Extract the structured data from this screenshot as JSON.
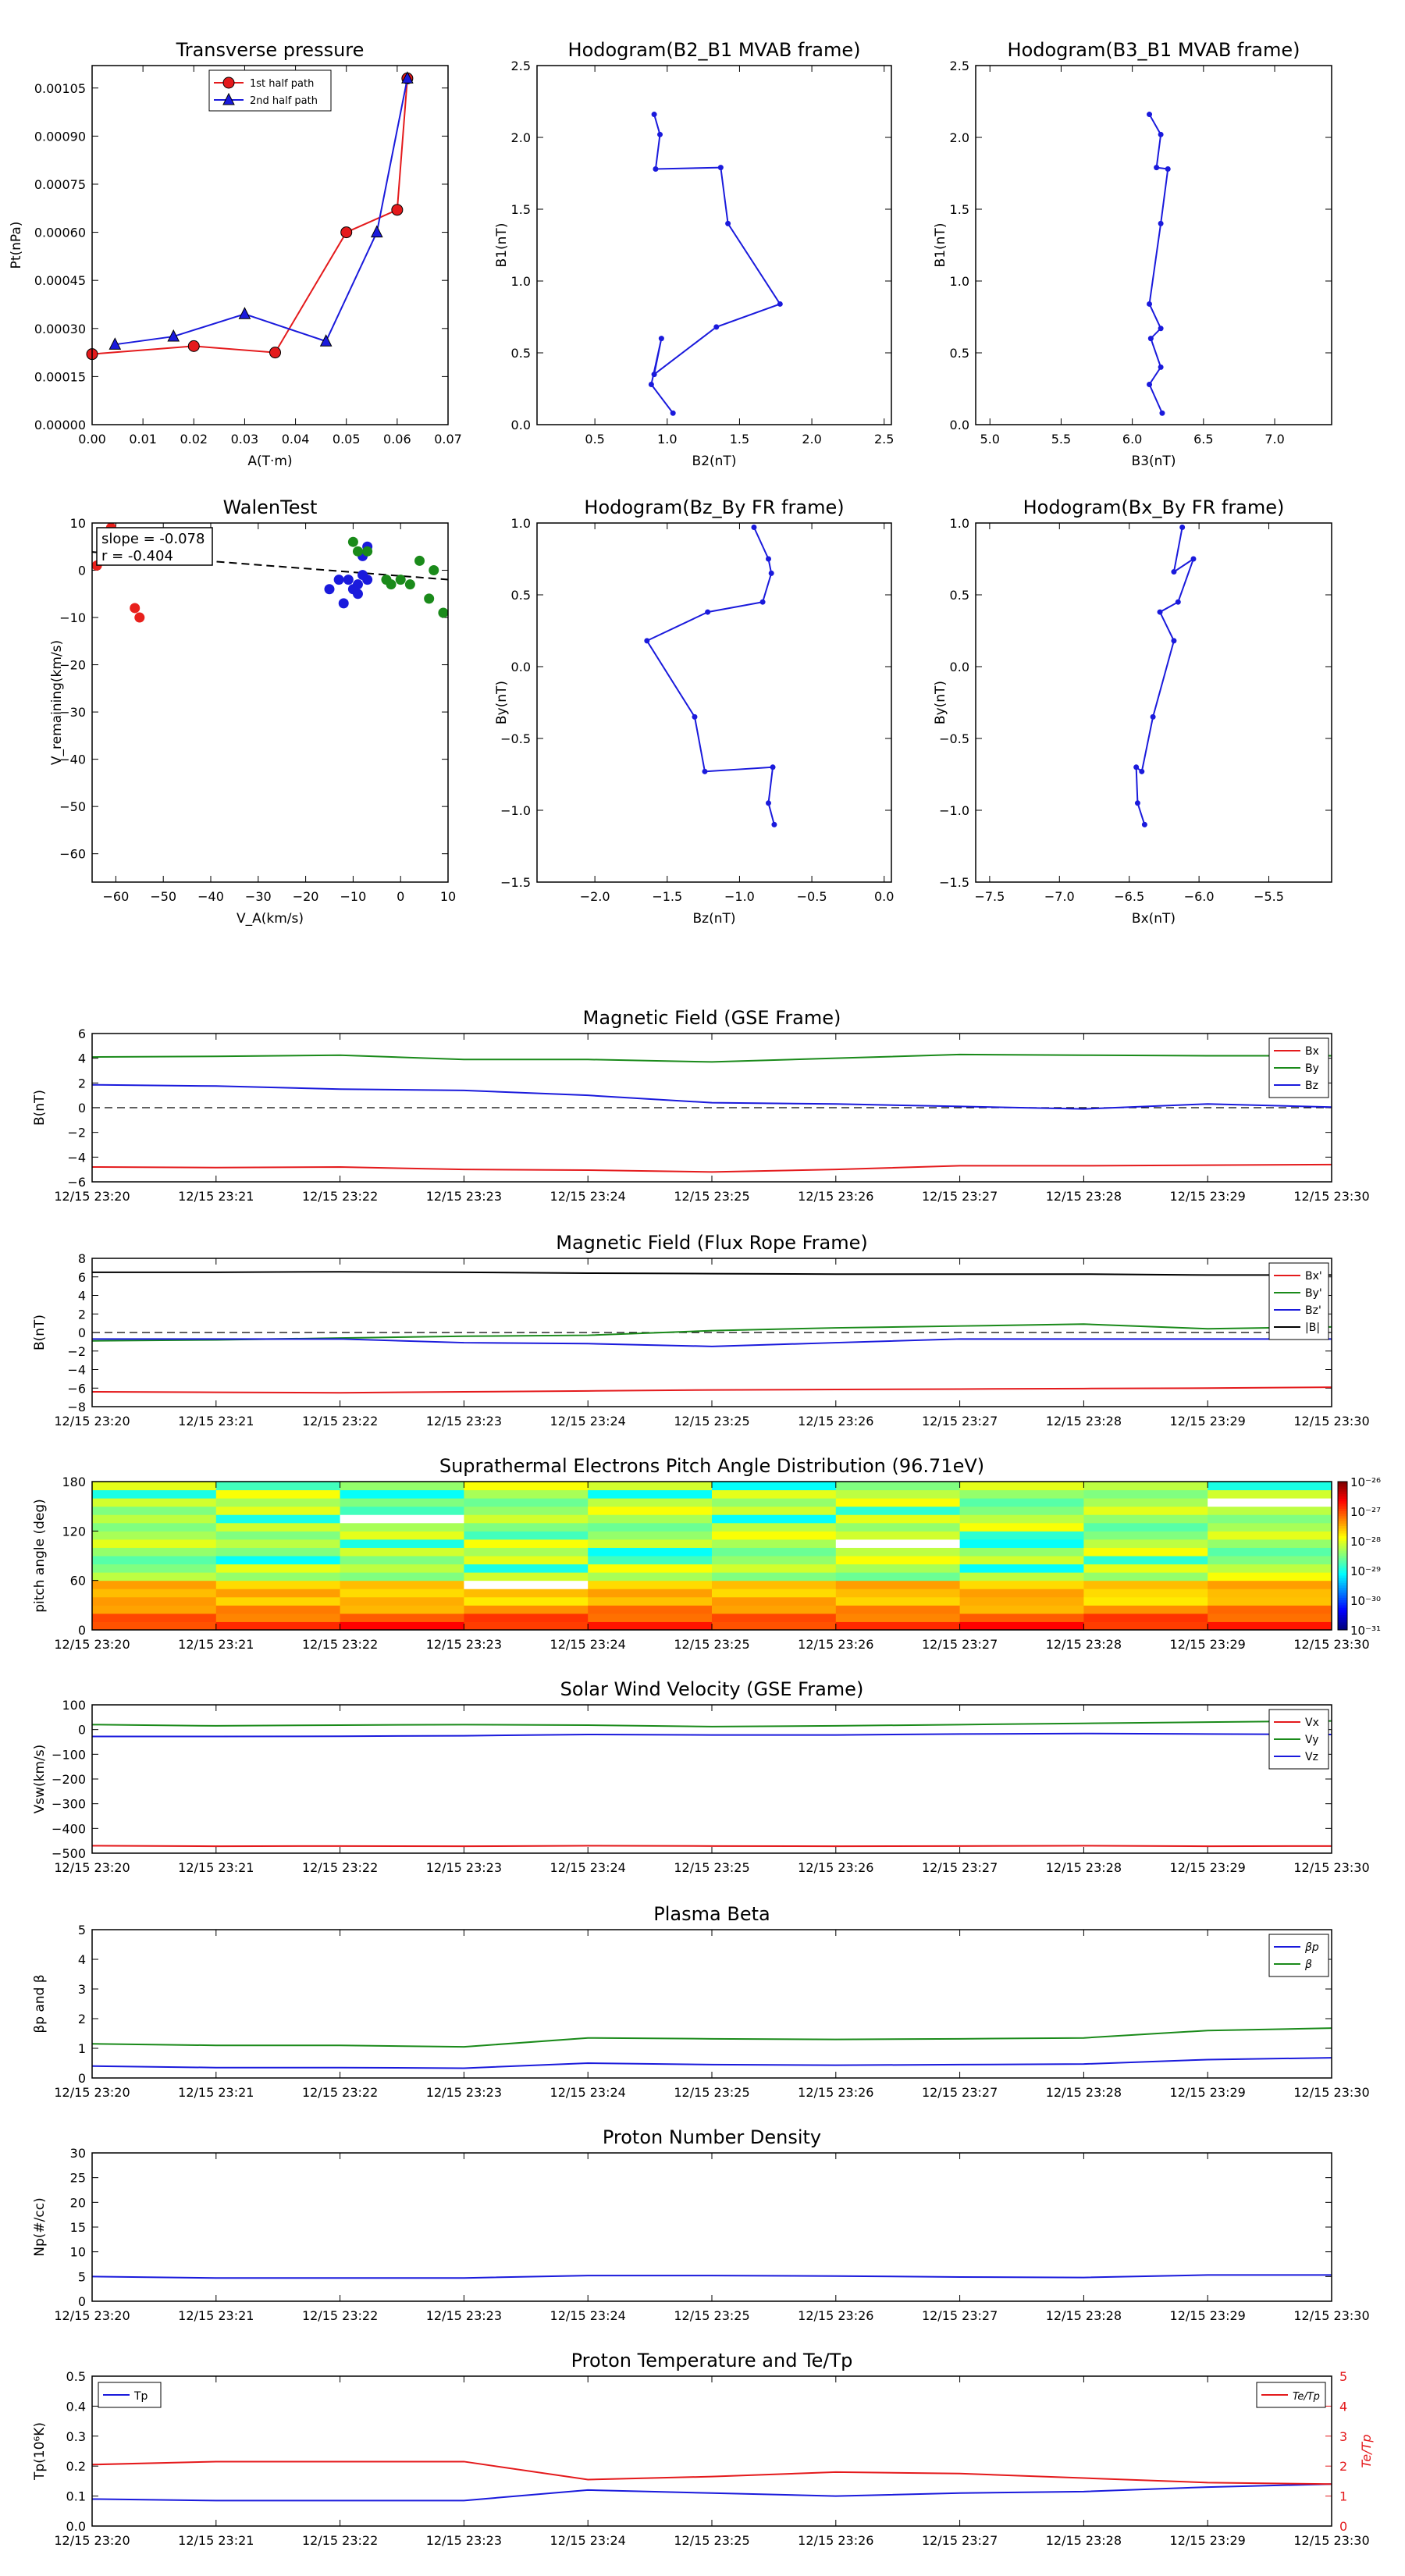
{
  "figure": {
    "time_ticks": [
      "12/15 23:20",
      "12/15 23:21",
      "12/15 23:22",
      "12/15 23:23",
      "12/15 23:24",
      "12/15 23:25",
      "12/15 23:26",
      "12/15 23:27",
      "12/15 23:28",
      "12/15 23:29",
      "12/15 23:30"
    ]
  },
  "chart_data": [
    {
      "id": "transverse",
      "type": "line",
      "title": "Transverse pressure",
      "xlabel": "A(T·m)",
      "ylabel": "Pt(nPa)",
      "xlim": [
        0,
        0.07
      ],
      "ylim": [
        0,
        0.00112
      ],
      "xticks": [
        0.0,
        0.01,
        0.02,
        0.03,
        0.04,
        0.05,
        0.06,
        0.07
      ],
      "xtick_labels": [
        "0.00",
        "0.01",
        "0.02",
        "0.03",
        "0.04",
        "0.05",
        "0.06",
        "0.07"
      ],
      "yticks": [
        0,
        0.00015,
        0.0003,
        0.00045,
        0.0006,
        0.00075,
        0.0009,
        0.00105
      ],
      "ytick_labels": [
        "0.00000",
        "0.00015",
        "0.00030",
        "0.00045",
        "0.00060",
        "0.00075",
        "0.00090",
        "0.00105"
      ],
      "legend": "top-center",
      "series": [
        {
          "name": "1st half path",
          "color": "#e41a1c",
          "marker": "circle",
          "x": [
            0.0,
            0.02,
            0.036,
            0.05,
            0.06,
            0.062
          ],
          "y": [
            0.00022,
            0.000245,
            0.000225,
            0.0006,
            0.00067,
            0.00108
          ]
        },
        {
          "name": "2nd half path",
          "color": "#1a1adc",
          "marker": "triangle",
          "x": [
            0.0045,
            0.016,
            0.03,
            0.046,
            0.056,
            0.062
          ],
          "y": [
            0.00025,
            0.000275,
            0.000345,
            0.00026,
            0.0006,
            0.00108
          ]
        }
      ]
    },
    {
      "id": "hodo_b2b1",
      "type": "line",
      "title": "Hodogram(B2_B1 MVAB frame)",
      "xlabel": "B2(nT)",
      "ylabel": "B1(nT)",
      "xlim": [
        0.1,
        2.55
      ],
      "ylim": [
        0.0,
        2.5
      ],
      "xticks": [
        0.5,
        1.0,
        1.5,
        2.0,
        2.5
      ],
      "xtick_labels": [
        "0.5",
        "1.0",
        "1.5",
        "2.0",
        "2.5"
      ],
      "yticks": [
        0.0,
        0.5,
        1.0,
        1.5,
        2.0,
        2.5
      ],
      "ytick_labels": [
        "0.0",
        "0.5",
        "1.0",
        "1.5",
        "2.0",
        "2.5"
      ],
      "series": [
        {
          "color": "#1a1adc",
          "x": [
            0.91,
            0.95,
            0.92,
            1.37,
            1.42,
            1.78,
            1.34,
            0.91,
            0.96,
            0.89,
            1.04
          ],
          "y": [
            2.16,
            2.02,
            1.78,
            1.79,
            1.4,
            0.84,
            0.68,
            0.35,
            0.6,
            0.28,
            0.08
          ]
        }
      ]
    },
    {
      "id": "hodo_b3b1",
      "type": "line",
      "title": "Hodogram(B3_B1 MVAB frame)",
      "xlabel": "B3(nT)",
      "ylabel": "B1(nT)",
      "xlim": [
        4.9,
        7.4
      ],
      "ylim": [
        0.0,
        2.5
      ],
      "xticks": [
        5.0,
        5.5,
        6.0,
        6.5,
        7.0
      ],
      "xtick_labels": [
        "5.0",
        "5.5",
        "6.0",
        "6.5",
        "7.0"
      ],
      "yticks": [
        0.0,
        0.5,
        1.0,
        1.5,
        2.0,
        2.5
      ],
      "ytick_labels": [
        "0.0",
        "0.5",
        "1.0",
        "1.5",
        "2.0",
        "2.5"
      ],
      "series": [
        {
          "color": "#1a1adc",
          "x": [
            6.12,
            6.2,
            6.17,
            6.25,
            6.2,
            6.12,
            6.2,
            6.13,
            6.2,
            6.12,
            6.21
          ],
          "y": [
            2.16,
            2.02,
            1.79,
            1.78,
            1.4,
            0.84,
            0.67,
            0.6,
            0.4,
            0.28,
            0.08
          ]
        }
      ]
    },
    {
      "id": "walen",
      "type": "scatter",
      "title": "WalenTest",
      "xlabel": "V_A(km/s)",
      "ylabel": "V_remaining(km/s)",
      "xlim": [
        -65,
        10
      ],
      "ylim": [
        -66,
        10
      ],
      "xticks": [
        -60,
        -50,
        -40,
        -30,
        -20,
        -10,
        0,
        10
      ],
      "xtick_labels": [
        "−60",
        "−50",
        "−40",
        "−30",
        "−20",
        "−10",
        "0",
        "10"
      ],
      "yticks": [
        10,
        0,
        -10,
        -20,
        -30,
        -40,
        -50,
        -60
      ],
      "ytick_labels": [
        "10",
        "0",
        "−10",
        "−20",
        "−30",
        "−40",
        "−50",
        "−60"
      ],
      "annotation": [
        "slope = -0.078",
        "r = -0.404"
      ],
      "fit": {
        "slope": -0.078,
        "intercept": -1.2
      },
      "series": [
        {
          "color": "#e8201c",
          "x": [
            -61,
            -56,
            -55,
            -63,
            -64
          ],
          "y": [
            9,
            -8,
            -10,
            3,
            1
          ]
        },
        {
          "color": "#1a1adc",
          "x": [
            -7,
            -8,
            -9,
            -10,
            -11,
            -13,
            -15,
            -12,
            -8,
            -9,
            -7
          ],
          "y": [
            5,
            3,
            -3,
            -4,
            -2,
            -2,
            -4,
            -7,
            -1,
            -5,
            -2
          ]
        },
        {
          "color": "#1a8a1a",
          "x": [
            -10,
            -9,
            -3,
            -2,
            0,
            2,
            4,
            6,
            7,
            9,
            -7
          ],
          "y": [
            6,
            4,
            -2,
            -3,
            -2,
            -3,
            2,
            -6,
            0,
            -9,
            4
          ]
        }
      ]
    },
    {
      "id": "hodo_bzby",
      "type": "line",
      "title": "Hodogram(Bz_By FR frame)",
      "xlabel": "Bz(nT)",
      "ylabel": "By(nT)",
      "xlim": [
        -2.4,
        0.05
      ],
      "ylim": [
        -1.5,
        1.0
      ],
      "xticks": [
        -2.0,
        -1.5,
        -1.0,
        -0.5,
        0.0
      ],
      "xtick_labels": [
        "−2.0",
        "−1.5",
        "−1.0",
        "−0.5",
        "0.0"
      ],
      "yticks": [
        -1.5,
        -1.0,
        -0.5,
        0.0,
        0.5,
        1.0
      ],
      "ytick_labels": [
        "−1.5",
        "−1.0",
        "−0.5",
        "0.0",
        "0.5",
        "1.0"
      ],
      "series": [
        {
          "color": "#1a1adc",
          "x": [
            -0.9,
            -0.8,
            -0.78,
            -0.84,
            -1.22,
            -1.64,
            -1.31,
            -1.24,
            -0.77,
            -0.8,
            -0.76
          ],
          "y": [
            0.97,
            0.75,
            0.65,
            0.45,
            0.38,
            0.18,
            -0.35,
            -0.73,
            -0.7,
            -0.95,
            -1.1
          ]
        }
      ]
    },
    {
      "id": "hodo_bxby",
      "type": "line",
      "title": "Hodogram(Bx_By FR frame)",
      "xlabel": "Bx(nT)",
      "ylabel": "By(nT)",
      "xlim": [
        -7.6,
        -5.05
      ],
      "ylim": [
        -1.5,
        1.0
      ],
      "xticks": [
        -7.5,
        -7.0,
        -6.5,
        -6.0,
        -5.5
      ],
      "xtick_labels": [
        "−7.5",
        "−7.0",
        "−6.5",
        "−6.0",
        "−5.5"
      ],
      "yticks": [
        -1.5,
        -1.0,
        -0.5,
        0.0,
        0.5,
        1.0
      ],
      "ytick_labels": [
        "−1.5",
        "−1.0",
        "−0.5",
        "0.0",
        "0.5",
        "1.0"
      ],
      "series": [
        {
          "color": "#1a1adc",
          "x": [
            -6.12,
            -6.18,
            -6.04,
            -6.15,
            -6.28,
            -6.18,
            -6.33,
            -6.41,
            -6.45,
            -6.44,
            -6.39
          ],
          "y": [
            0.97,
            0.66,
            0.75,
            0.45,
            0.38,
            0.18,
            -0.35,
            -0.73,
            -0.7,
            -0.95,
            -1.1
          ]
        }
      ]
    },
    {
      "id": "mag_gse",
      "type": "line",
      "title": "Magnetic Field (GSE Frame)",
      "ylabel": "B(nT)",
      "ylim": [
        -6,
        6
      ],
      "yticks": [
        6,
        4,
        2,
        0,
        -2,
        -4,
        -6
      ],
      "ytick_labels": [
        "6",
        "4",
        "2",
        "0",
        "−2",
        "−4",
        "−6"
      ],
      "zero_line": true,
      "legend": "top-right",
      "x_minutes": [
        0,
        1,
        2,
        3,
        4,
        5,
        6,
        7,
        8,
        9,
        10
      ],
      "series": [
        {
          "name": "Bx",
          "color": "#e41a1c",
          "values": [
            -4.8,
            -4.85,
            -4.8,
            -5.0,
            -5.05,
            -5.2,
            -5.0,
            -4.7,
            -4.7,
            -4.65,
            -4.6
          ]
        },
        {
          "name": "By",
          "color": "#1a8a1a",
          "values": [
            4.1,
            4.15,
            4.25,
            3.9,
            3.9,
            3.7,
            4.0,
            4.3,
            4.25,
            4.2,
            4.2
          ]
        },
        {
          "name": "Bz",
          "color": "#1a1adc",
          "values": [
            1.85,
            1.75,
            1.5,
            1.4,
            1.0,
            0.4,
            0.3,
            0.1,
            -0.1,
            0.3,
            0.05
          ]
        }
      ]
    },
    {
      "id": "mag_fr",
      "type": "line",
      "title": "Magnetic Field (Flux Rope Frame)",
      "ylabel": "B(nT)",
      "ylim": [
        -8,
        8
      ],
      "yticks": [
        8,
        6,
        4,
        2,
        0,
        -2,
        -4,
        -6,
        -8
      ],
      "ytick_labels": [
        "8",
        "6",
        "4",
        "2",
        "0",
        "−2",
        "−4",
        "−6",
        "−8"
      ],
      "zero_line": true,
      "legend": "top-right",
      "x_minutes": [
        0,
        1,
        2,
        3,
        4,
        5,
        6,
        7,
        8,
        9,
        10
      ],
      "series": [
        {
          "name": "Bx'",
          "color": "#e41a1c",
          "values": [
            -6.4,
            -6.45,
            -6.5,
            -6.4,
            -6.3,
            -6.2,
            -6.15,
            -6.1,
            -6.05,
            -6.0,
            -5.9
          ]
        },
        {
          "name": "By'",
          "color": "#1a8a1a",
          "values": [
            -0.9,
            -0.8,
            -0.6,
            -0.4,
            -0.3,
            0.2,
            0.5,
            0.7,
            0.9,
            0.4,
            0.6
          ]
        },
        {
          "name": "Bz'",
          "color": "#1a1adc",
          "values": [
            -0.7,
            -0.7,
            -0.7,
            -1.1,
            -1.2,
            -1.5,
            -1.1,
            -0.7,
            -0.7,
            -0.7,
            -0.7
          ]
        },
        {
          "name": "|B|",
          "color": "#000000",
          "values": [
            6.5,
            6.5,
            6.55,
            6.5,
            6.4,
            6.35,
            6.3,
            6.3,
            6.3,
            6.2,
            6.2
          ]
        }
      ]
    },
    {
      "id": "pad",
      "type": "heatmap",
      "title": "Suprathermal Electrons Pitch Angle Distribution (96.71eV)",
      "ylabel": "pitch angle (deg)",
      "ylim": [
        0,
        180
      ],
      "yticks": [
        180,
        120,
        60,
        0
      ],
      "ytick_labels": [
        "180",
        "120",
        "60",
        "0"
      ],
      "colorbar_labels": [
        "10⁻²⁶",
        "10⁻²⁷",
        "10⁻²⁸",
        "10⁻²⁹",
        "10⁻³⁰",
        "10⁻³¹"
      ]
    },
    {
      "id": "vsw",
      "type": "line",
      "title": "Solar Wind Velocity (GSE Frame)",
      "ylabel": "Vsw(km/s)",
      "ylim": [
        -500,
        100
      ],
      "yticks": [
        100,
        0,
        -100,
        -200,
        -300,
        -400,
        -500
      ],
      "ytick_labels": [
        "100",
        "0",
        "−100",
        "−200",
        "−300",
        "−400",
        "−500"
      ],
      "legend": "top-right",
      "x_minutes": [
        0,
        1,
        2,
        3,
        4,
        5,
        6,
        7,
        8,
        9,
        10
      ],
      "series": [
        {
          "name": "Vx",
          "color": "#e41a1c",
          "values": [
            -470,
            -472,
            -471,
            -472,
            -470,
            -471,
            -472,
            -471,
            -470,
            -472,
            -471
          ]
        },
        {
          "name": "Vy",
          "color": "#1a8a1a",
          "values": [
            20,
            15,
            18,
            20,
            18,
            12,
            15,
            20,
            25,
            30,
            35
          ]
        },
        {
          "name": "Vz",
          "color": "#1a1adc",
          "values": [
            -28,
            -28,
            -27,
            -25,
            -20,
            -22,
            -22,
            -18,
            -16,
            -18,
            -20
          ]
        }
      ]
    },
    {
      "id": "beta",
      "type": "line",
      "title": "Plasma Beta",
      "ylabel": "βp and β",
      "ylim": [
        0,
        5
      ],
      "yticks": [
        5,
        4,
        3,
        2,
        1,
        0
      ],
      "ytick_labels": [
        "5",
        "4",
        "3",
        "2",
        "1",
        "0"
      ],
      "legend": "top-right",
      "x_minutes": [
        0,
        1,
        2,
        3,
        4,
        5,
        6,
        7,
        8,
        9,
        10
      ],
      "series": [
        {
          "name": "βp",
          "color": "#1a1adc",
          "values": [
            0.4,
            0.35,
            0.35,
            0.33,
            0.5,
            0.45,
            0.43,
            0.45,
            0.47,
            0.62,
            0.68
          ]
        },
        {
          "name": "β",
          "color": "#1a8a1a",
          "values": [
            1.15,
            1.1,
            1.1,
            1.05,
            1.35,
            1.32,
            1.3,
            1.32,
            1.35,
            1.6,
            1.68
          ]
        }
      ]
    },
    {
      "id": "np",
      "type": "line",
      "title": "Proton Number Density",
      "ylabel": "Np(#/cc)",
      "ylim": [
        0,
        30
      ],
      "yticks": [
        30,
        25,
        20,
        15,
        10,
        5,
        0
      ],
      "ytick_labels": [
        "30",
        "25",
        "20",
        "15",
        "10",
        "5",
        "0"
      ],
      "x_minutes": [
        0,
        1,
        2,
        3,
        4,
        5,
        6,
        7,
        8,
        9,
        10
      ],
      "series": [
        {
          "name": "Np",
          "color": "#1a1adc",
          "values": [
            5.0,
            4.7,
            4.7,
            4.7,
            5.2,
            5.2,
            5.1,
            4.9,
            4.8,
            5.3,
            5.3
          ]
        }
      ]
    },
    {
      "id": "tp",
      "type": "line",
      "title": "Proton Temperature and Te/Tp",
      "ylabel": "Tp(10⁶K)",
      "ylabel_right": "Te/Tp",
      "ylim": [
        0,
        0.5
      ],
      "ylim_right": [
        0,
        5
      ],
      "yticks": [
        0.5,
        0.4,
        0.3,
        0.2,
        0.1,
        0.0
      ],
      "ytick_labels": [
        "0.5",
        "0.4",
        "0.3",
        "0.2",
        "0.1",
        "0.0"
      ],
      "yticks_right": [
        5,
        4,
        3,
        2,
        1,
        0
      ],
      "ytick_labels_right": [
        "5",
        "4",
        "3",
        "2",
        "1",
        "0"
      ],
      "x_minutes": [
        0,
        1,
        2,
        3,
        4,
        5,
        6,
        7,
        8,
        9,
        10
      ],
      "series": [
        {
          "name": "Tp",
          "color": "#1a1adc",
          "axis": "left",
          "values": [
            0.09,
            0.085,
            0.085,
            0.085,
            0.12,
            0.11,
            0.1,
            0.11,
            0.115,
            0.13,
            0.14
          ]
        },
        {
          "name": "Te/Tp",
          "color": "#e41a1c",
          "axis": "right",
          "values": [
            2.05,
            2.15,
            2.15,
            2.15,
            1.55,
            1.65,
            1.8,
            1.75,
            1.6,
            1.45,
            1.4
          ]
        }
      ]
    }
  ]
}
